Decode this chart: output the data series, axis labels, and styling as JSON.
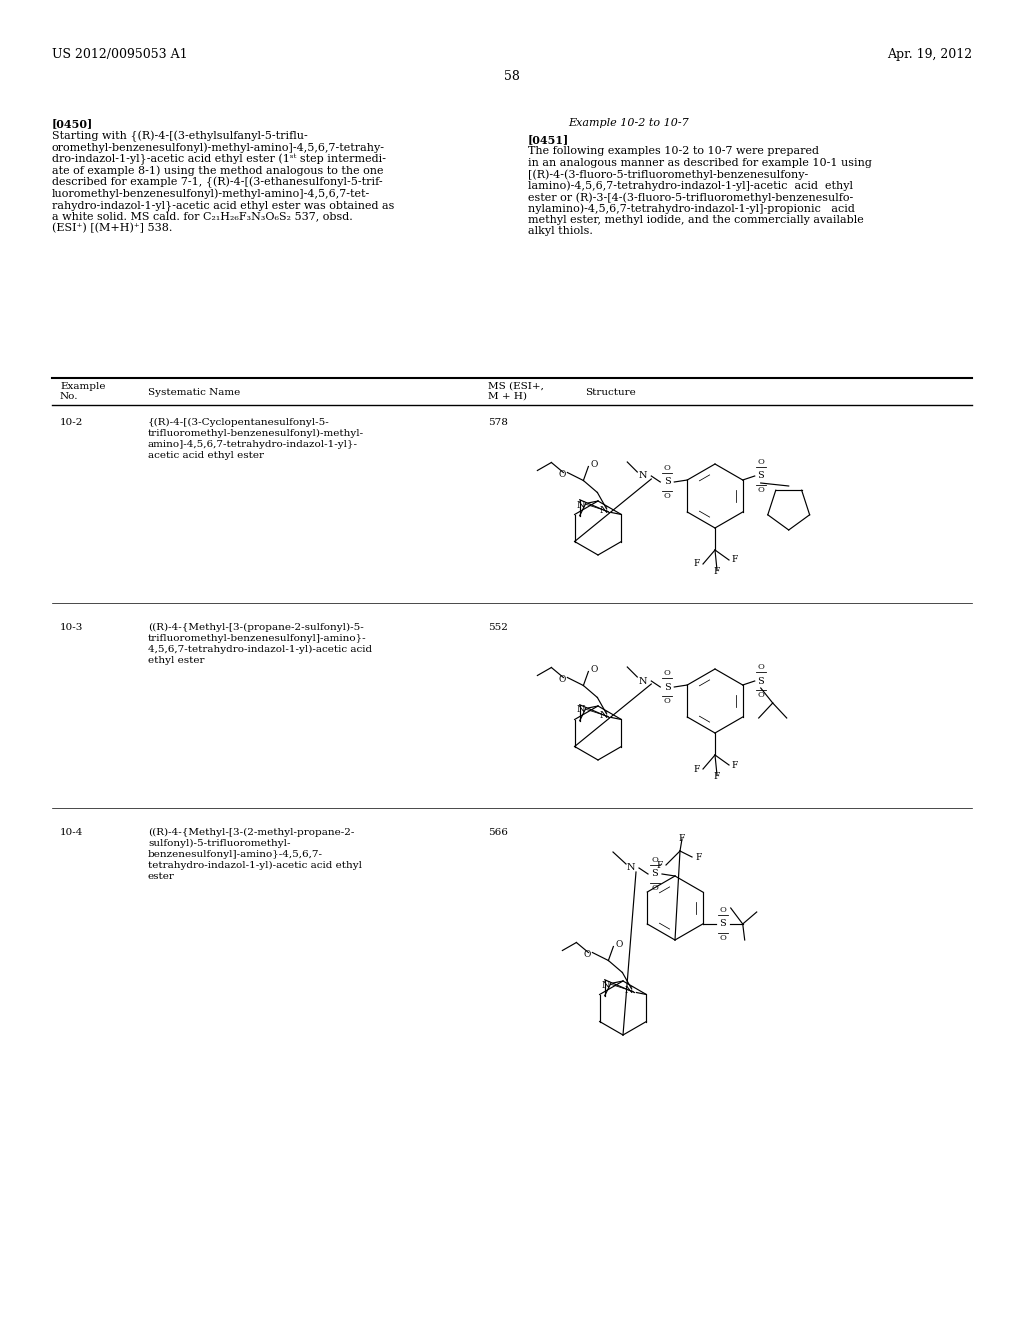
{
  "background_color": "#ffffff",
  "header_left": "US 2012/0095053 A1",
  "header_right": "Apr. 19, 2012",
  "page_number": "58",
  "text_color": "#000000",
  "font_size_header": 9.0,
  "font_size_body": 8.0,
  "font_size_table": 7.5,
  "rows": [
    {
      "example_no": "10-2",
      "name_lines": [
        "{(R)-4-[(3-Cyclopentanesulfonyl-5-",
        "trifluoromethyl-benzenesulfonyl)-methyl-",
        "amino]-4,5,6,7-tetrahydro-indazol-1-yl}-",
        "acetic acid ethyl ester"
      ],
      "ms": "578"
    },
    {
      "example_no": "10-3",
      "name_lines": [
        "((R)-4-{Methyl-[3-(propane-2-sulfonyl)-5-",
        "trifluoromethyl-benzenesulfonyl]-amino}-",
        "4,5,6,7-tetrahydro-indazol-1-yl)-acetic acid",
        "ethyl ester"
      ],
      "ms": "552"
    },
    {
      "example_no": "10-4",
      "name_lines": [
        "((R)-4-{Methyl-[3-(2-methyl-propane-2-",
        "sulfonyl)-5-trifluoromethyl-",
        "benzenesulfonyl]-amino}-4,5,6,7-",
        "tetrahydro-indazol-1-yl)-acetic acid ethyl",
        "ester"
      ],
      "ms": "566"
    }
  ]
}
